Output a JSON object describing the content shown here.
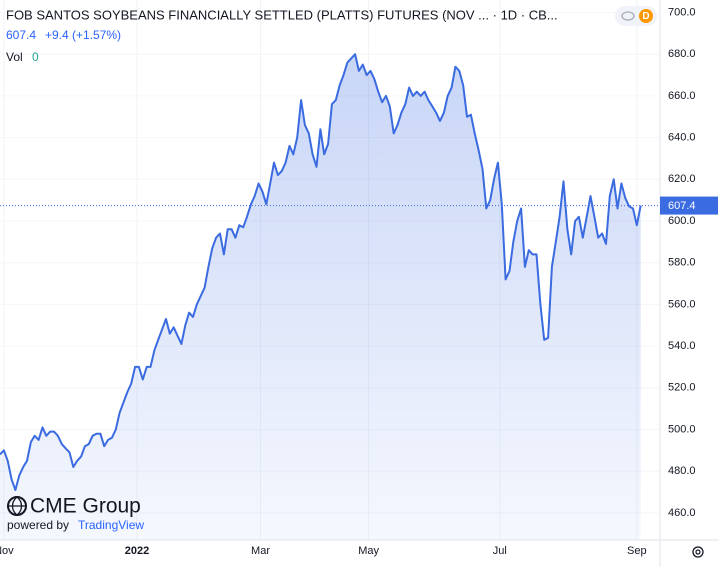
{
  "header": {
    "title": "FOB SANTOS SOYBEANS FINANCIALLY SETTLED (PLATTS) FUTURES (NOV ... · 1D · CB...",
    "change": "+9.4 (+1.57%)",
    "volume_label": "Vol",
    "volume": 0,
    "badge": "D"
  },
  "watermark": {
    "brand": "CME Group",
    "powered": "powered by",
    "platform": "TradingView"
  },
  "chart_data": {
    "type": "area",
    "color": "#3a6be0",
    "grid": true,
    "last_value_line": true,
    "values": [
      488,
      490,
      485,
      476,
      471,
      478,
      482,
      485,
      494,
      497,
      495,
      501,
      497,
      499,
      499,
      497,
      493,
      491,
      489,
      482,
      485,
      487,
      492,
      493,
      497,
      498,
      498,
      492,
      495,
      496,
      500,
      508,
      513,
      518,
      522,
      530,
      530,
      524,
      530,
      530,
      538,
      543,
      548,
      553,
      546,
      549,
      545,
      541,
      550,
      556,
      554,
      560,
      564,
      568,
      578,
      587,
      592,
      594,
      584,
      596,
      596,
      592,
      598,
      597,
      602,
      608,
      612,
      618,
      614,
      608,
      618,
      628,
      622,
      624,
      628,
      636,
      632,
      640,
      658,
      646,
      642,
      632,
      626,
      644,
      632,
      637,
      656,
      658,
      665,
      670,
      676,
      678,
      680,
      672,
      675,
      670,
      672,
      668,
      662,
      657,
      660,
      655,
      642,
      646,
      652,
      656,
      664,
      660,
      662,
      660,
      662,
      658,
      655,
      652,
      648,
      652,
      660,
      664,
      674,
      672,
      665,
      650,
      651,
      642,
      634,
      625,
      606,
      610,
      620,
      628,
      608,
      572,
      576,
      590,
      600,
      606,
      578,
      586,
      584,
      584,
      560,
      543,
      544,
      578,
      590,
      602,
      619,
      596,
      584,
      600,
      602,
      592,
      602,
      612,
      602,
      592,
      594,
      589,
      612,
      620,
      606,
      618,
      611,
      607,
      606,
      598,
      607.4
    ],
    "xlim": [
      0,
      171
    ],
    "xticks": [
      {
        "value": 1,
        "label": "Nov"
      },
      {
        "value": 35.5,
        "label": "2022"
      },
      {
        "value": 67.5,
        "label": "Mar"
      },
      {
        "value": 95.5,
        "label": "May"
      },
      {
        "value": 129.5,
        "label": "Jul"
      },
      {
        "value": 165,
        "label": "Sep"
      }
    ],
    "ylim": [
      447,
      706
    ],
    "yticks": [
      {
        "value": 460,
        "label": "460.0"
      },
      {
        "value": 480,
        "label": "480.0"
      },
      {
        "value": 500,
        "label": "500.0"
      },
      {
        "value": 520,
        "label": "520.0"
      },
      {
        "value": 540,
        "label": "540.0"
      },
      {
        "value": 560,
        "label": "560.0"
      },
      {
        "value": 580,
        "label": "580.0"
      },
      {
        "value": 600,
        "label": "600.0"
      },
      {
        "value": 620,
        "label": "620.0"
      },
      {
        "value": 640,
        "label": "640.0"
      },
      {
        "value": 660,
        "label": "660.0"
      },
      {
        "value": 680,
        "label": "680.0"
      },
      {
        "value": 700,
        "label": "700.0"
      }
    ]
  }
}
